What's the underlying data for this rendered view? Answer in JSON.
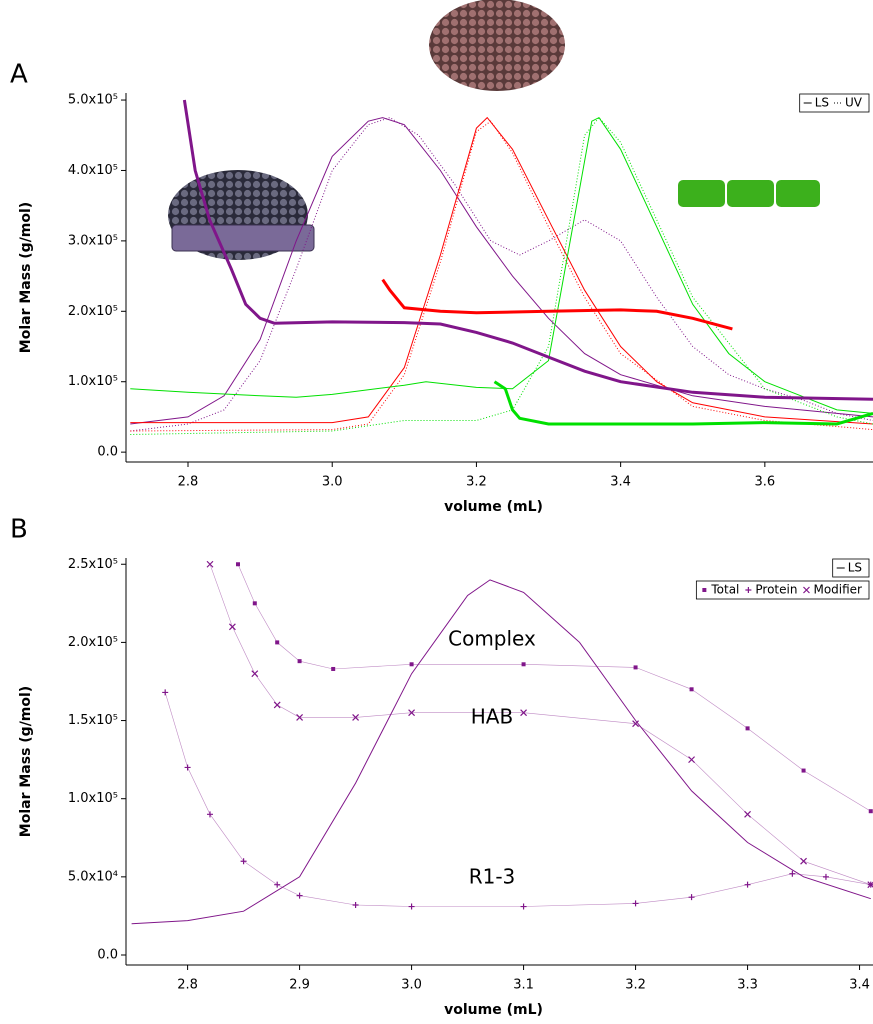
{
  "chart_data": [
    {
      "type": "line",
      "panel_label": "A",
      "xlabel": "volume (mL)",
      "ylabel": "Molar Mass (g/mol)",
      "xlim": [
        2.714,
        3.75
      ],
      "ylim": [
        -14000,
        510000
      ],
      "xticks": [
        2.8,
        {
          "value": 3,
          "label": "3.0"
        },
        3.2,
        3.4,
        3.6
      ],
      "yticks": [
        {
          "value": 0,
          "label": "0.0"
        },
        {
          "value": 100000,
          "label": "1.0x10⁵"
        },
        {
          "value": 200000,
          "label": "2.0x10⁵"
        },
        {
          "value": 300000,
          "label": "3.0x10⁵"
        },
        {
          "value": 400000,
          "label": "4.0x10⁵"
        },
        {
          "value": 500000,
          "label": "5.0x10⁵"
        }
      ],
      "legend": "upper right",
      "series": [
        {
          "name": "LS",
          "color": "#80168a",
          "style": "line",
          "x": [
            2.72,
            2.8,
            2.85,
            2.9,
            2.95,
            3.0,
            3.05,
            3.07,
            3.1,
            3.15,
            3.2,
            3.25,
            3.3,
            3.35,
            3.4,
            3.5,
            3.6,
            3.7,
            3.75
          ],
          "values": [
            40000,
            50000,
            80000,
            160000,
            300000,
            420000,
            470000,
            475000,
            465000,
            400000,
            320000,
            250000,
            190000,
            140000,
            110000,
            80000,
            65000,
            55000,
            50000
          ]
        },
        {
          "name": "UV",
          "color": "#80168a",
          "style": "dotted",
          "x": [
            2.72,
            2.8,
            2.85,
            2.9,
            2.95,
            3.0,
            3.05,
            3.08,
            3.12,
            3.17,
            3.22,
            3.26,
            3.3,
            3.35,
            3.4,
            3.45,
            3.5,
            3.55,
            3.6,
            3.65,
            3.7,
            3.75
          ],
          "values": [
            30000,
            40000,
            60000,
            130000,
            260000,
            400000,
            465000,
            475000,
            450000,
            380000,
            300000,
            280000,
            300000,
            330000,
            300000,
            220000,
            150000,
            110000,
            90000,
            75000,
            55000,
            45000
          ]
        },
        {
          "name": "LS",
          "color": "#ff0000",
          "style": "line",
          "x": [
            2.72,
            3.0,
            3.05,
            3.1,
            3.15,
            3.2,
            3.215,
            3.25,
            3.3,
            3.35,
            3.4,
            3.45,
            3.5,
            3.6,
            3.75
          ],
          "values": [
            42000,
            42000,
            50000,
            120000,
            280000,
            460000,
            475000,
            430000,
            330000,
            230000,
            150000,
            100000,
            70000,
            50000,
            40000
          ]
        },
        {
          "name": "UV",
          "color": "#ff0000",
          "style": "dotted",
          "x": [
            2.72,
            3.0,
            3.05,
            3.1,
            3.15,
            3.2,
            3.22,
            3.25,
            3.3,
            3.35,
            3.4,
            3.5,
            3.6,
            3.75
          ],
          "values": [
            30000,
            32000,
            40000,
            110000,
            270000,
            455000,
            470000,
            425000,
            320000,
            220000,
            140000,
            65000,
            45000,
            32000
          ]
        },
        {
          "name": "LS",
          "color": "#00e000",
          "style": "line",
          "x": [
            2.72,
            2.8,
            2.9,
            2.95,
            3.0,
            3.1,
            3.13,
            3.2,
            3.25,
            3.3,
            3.33,
            3.36,
            3.37,
            3.4,
            3.45,
            3.5,
            3.55,
            3.6,
            3.65,
            3.7,
            3.75
          ],
          "values": [
            90000,
            85000,
            80000,
            78000,
            82000,
            95000,
            100000,
            92000,
            90000,
            130000,
            300000,
            470000,
            475000,
            430000,
            320000,
            210000,
            140000,
            100000,
            80000,
            60000,
            55000
          ]
        },
        {
          "name": "UV",
          "color": "#00e000",
          "style": "dotted",
          "x": [
            2.72,
            3.0,
            3.1,
            3.2,
            3.25,
            3.3,
            3.35,
            3.37,
            3.4,
            3.5,
            3.6,
            3.7,
            3.75
          ],
          "values": [
            25000,
            30000,
            45000,
            45000,
            60000,
            150000,
            450000,
            475000,
            440000,
            220000,
            90000,
            50000,
            40000
          ]
        },
        {
          "color": "#80168a",
          "style": "thick",
          "x": [
            2.795,
            2.81,
            2.83,
            2.86,
            2.88,
            2.9,
            2.92,
            3.0,
            3.1,
            3.15,
            3.2,
            3.25,
            3.3,
            3.35,
            3.4,
            3.5,
            3.6,
            3.75
          ],
          "values": [
            500000,
            400000,
            330000,
            260000,
            210000,
            190000,
            183000,
            185000,
            184000,
            182000,
            170000,
            155000,
            135000,
            115000,
            100000,
            85000,
            78000,
            75000
          ]
        },
        {
          "color": "#ff0000",
          "style": "thick",
          "x": [
            3.07,
            3.08,
            3.1,
            3.15,
            3.2,
            3.3,
            3.4,
            3.45,
            3.5,
            3.555
          ],
          "values": [
            245000,
            230000,
            205000,
            200000,
            198000,
            200000,
            202000,
            200000,
            190000,
            175000
          ]
        },
        {
          "color": "#00e000",
          "style": "thick",
          "x": [
            3.225,
            3.24,
            3.25,
            3.26,
            3.3,
            3.4,
            3.5,
            3.6,
            3.7,
            3.75
          ],
          "values": [
            100000,
            90000,
            60000,
            48000,
            40000,
            40000,
            40000,
            42000,
            40000,
            55000
          ]
        }
      ]
    },
    {
      "type": "line",
      "panel_label": "B",
      "xlabel": "volume (mL)",
      "ylabel": "Molar Mass (g/mol)",
      "xlim": [
        2.745,
        3.412
      ],
      "ylim": [
        -6400,
        254000
      ],
      "xticks": [
        2.8,
        2.9,
        {
          "value": 3,
          "label": "3.0"
        },
        3.1,
        3.2,
        3.3,
        3.4
      ],
      "yticks": [
        {
          "value": 0,
          "label": "0.0"
        },
        {
          "value": 50000,
          "label": "5.0x10⁴"
        },
        {
          "value": 100000,
          "label": "1.0x10⁵"
        },
        {
          "value": 150000,
          "label": "1.5x10⁵"
        },
        {
          "value": 200000,
          "label": "2.0x10⁵"
        },
        {
          "value": 250000,
          "label": "2.5x10⁵"
        }
      ],
      "legend": "upper right",
      "annotations": [
        "Complex",
        "HAB",
        "R1-3"
      ],
      "series": [
        {
          "name": "LS",
          "color": "#80168a",
          "style": "line",
          "x": [
            2.75,
            2.8,
            2.85,
            2.9,
            2.95,
            3.0,
            3.05,
            3.07,
            3.1,
            3.15,
            3.2,
            3.25,
            3.3,
            3.35,
            3.41
          ],
          "values": [
            20000,
            22000,
            28000,
            50000,
            110000,
            180000,
            230000,
            240000,
            232000,
            200000,
            150000,
            105000,
            72000,
            50000,
            36000
          ]
        },
        {
          "name": "Total",
          "color": "#80168a",
          "style": "square",
          "x": [
            2.845,
            2.86,
            2.88,
            2.9,
            2.93,
            3.0,
            3.1,
            3.2,
            3.25,
            3.3,
            3.35,
            3.41
          ],
          "values": [
            250000,
            225000,
            200000,
            188000,
            183000,
            186000,
            186000,
            184000,
            170000,
            145000,
            118000,
            92000
          ]
        },
        {
          "name": "Protein",
          "color": "#80168a",
          "style": "plus",
          "x": [
            2.78,
            2.8,
            2.82,
            2.85,
            2.88,
            2.9,
            2.95,
            3.0,
            3.1,
            3.2,
            3.25,
            3.3,
            3.34,
            3.37,
            3.41
          ],
          "values": [
            168000,
            120000,
            90000,
            60000,
            45000,
            38000,
            32000,
            31000,
            31000,
            33000,
            37000,
            45000,
            52000,
            50000,
            45000
          ]
        },
        {
          "name": "Modifier",
          "color": "#80168a",
          "style": "cross",
          "x": [
            2.82,
            2.84,
            2.86,
            2.88,
            2.9,
            2.95,
            3.0,
            3.1,
            3.2,
            3.25,
            3.3,
            3.35,
            3.41
          ],
          "values": [
            250000,
            210000,
            180000,
            160000,
            152000,
            152000,
            155000,
            155000,
            148000,
            125000,
            90000,
            60000,
            45000
          ]
        }
      ]
    }
  ]
}
